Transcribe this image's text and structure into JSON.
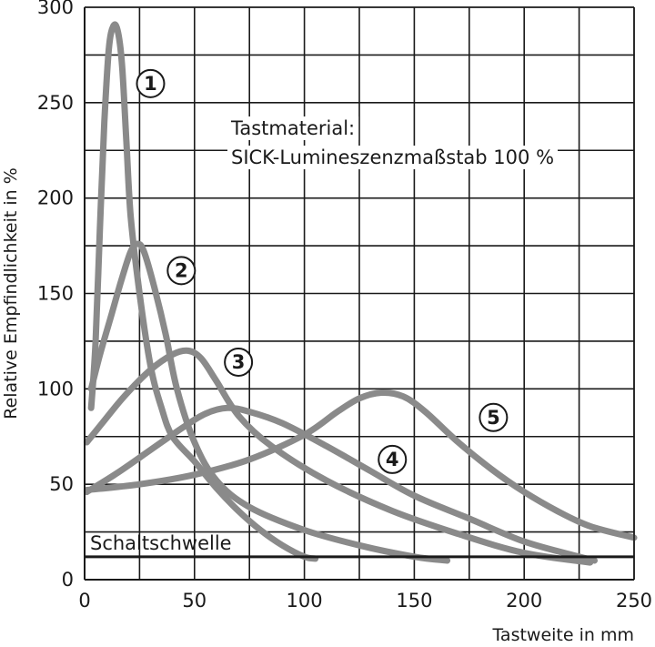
{
  "chart_data": {
    "type": "line",
    "xlabel": "Tastweite in mm",
    "ylabel": "Relative Empfindlichkeit in %",
    "xlim": [
      0,
      250
    ],
    "ylim": [
      0,
      300
    ],
    "x_ticks": [
      0,
      50,
      100,
      150,
      200,
      250
    ],
    "y_ticks": [
      0,
      50,
      100,
      150,
      200,
      250,
      300
    ],
    "grid": true,
    "colors": {
      "curve": "#8a8a8a",
      "grid": "#1a1a1a",
      "threshold": "#1a1a1a"
    },
    "annotation": {
      "line1": "Tastmaterial:",
      "line2": "SICK-Lumineszenzmaßstab 100 %"
    },
    "threshold": {
      "label": "Schaltschwelle",
      "value": 12
    },
    "series": [
      {
        "label": "1",
        "label_at": [
          30,
          260
        ],
        "points": [
          [
            3,
            90
          ],
          [
            5,
            125
          ],
          [
            7,
            185
          ],
          [
            9,
            240
          ],
          [
            11,
            278
          ],
          [
            13,
            290
          ],
          [
            15,
            288
          ],
          [
            17,
            270
          ],
          [
            19,
            230
          ],
          [
            21,
            190
          ],
          [
            25,
            150
          ],
          [
            30,
            112
          ],
          [
            35,
            90
          ],
          [
            40,
            75
          ],
          [
            50,
            62
          ],
          [
            60,
            48
          ],
          [
            70,
            36
          ],
          [
            80,
            26
          ],
          [
            90,
            18
          ],
          [
            100,
            12
          ],
          [
            105,
            11
          ]
        ]
      },
      {
        "label": "2",
        "label_at": [
          44,
          162
        ],
        "points": [
          [
            3,
            100
          ],
          [
            7,
            118
          ],
          [
            12,
            138
          ],
          [
            17,
            158
          ],
          [
            21,
            172
          ],
          [
            24,
            176
          ],
          [
            27,
            172
          ],
          [
            32,
            152
          ],
          [
            37,
            128
          ],
          [
            42,
            100
          ],
          [
            50,
            72
          ],
          [
            60,
            52
          ],
          [
            75,
            38
          ],
          [
            100,
            26
          ],
          [
            125,
            18
          ],
          [
            150,
            12
          ],
          [
            165,
            10
          ]
        ]
      },
      {
        "label": "3",
        "label_at": [
          70,
          114
        ],
        "points": [
          [
            1,
            72
          ],
          [
            8,
            82
          ],
          [
            18,
            96
          ],
          [
            30,
            110
          ],
          [
            40,
            118
          ],
          [
            47,
            120
          ],
          [
            53,
            116
          ],
          [
            60,
            104
          ],
          [
            70,
            86
          ],
          [
            85,
            70
          ],
          [
            110,
            52
          ],
          [
            140,
            36
          ],
          [
            170,
            24
          ],
          [
            200,
            14
          ],
          [
            230,
            9
          ]
        ]
      },
      {
        "label": "4",
        "label_at": [
          140,
          63
        ],
        "points": [
          [
            1,
            46
          ],
          [
            15,
            56
          ],
          [
            30,
            68
          ],
          [
            45,
            80
          ],
          [
            55,
            87
          ],
          [
            65,
            90
          ],
          [
            75,
            88
          ],
          [
            90,
            82
          ],
          [
            110,
            70
          ],
          [
            130,
            57
          ],
          [
            150,
            44
          ],
          [
            175,
            32
          ],
          [
            200,
            20
          ],
          [
            225,
            12
          ],
          [
            232,
            10
          ]
        ]
      },
      {
        "label": "5",
        "label_at": [
          186,
          85
        ],
        "points": [
          [
            1,
            47
          ],
          [
            25,
            50
          ],
          [
            50,
            55
          ],
          [
            75,
            63
          ],
          [
            100,
            76
          ],
          [
            115,
            88
          ],
          [
            125,
            95
          ],
          [
            135,
            98
          ],
          [
            145,
            96
          ],
          [
            155,
            88
          ],
          [
            170,
            72
          ],
          [
            185,
            58
          ],
          [
            200,
            46
          ],
          [
            215,
            36
          ],
          [
            230,
            28
          ],
          [
            250,
            22
          ]
        ]
      }
    ]
  }
}
